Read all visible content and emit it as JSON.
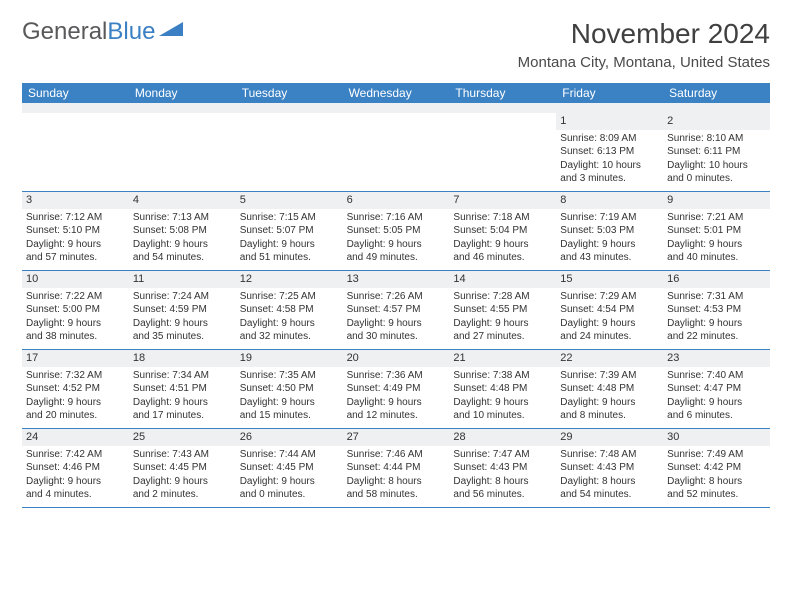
{
  "brand": {
    "part1": "General",
    "part2": "Blue"
  },
  "title": "November 2024",
  "location": "Montana City, Montana, United States",
  "colors": {
    "header_bg": "#3b82c4",
    "header_text": "#ffffff",
    "daynum_bg": "#eef0f2",
    "border": "#3b82c4",
    "text": "#333333",
    "brand_gray": "#59595b",
    "brand_blue": "#3b7fc4"
  },
  "day_names": [
    "Sunday",
    "Monday",
    "Tuesday",
    "Wednesday",
    "Thursday",
    "Friday",
    "Saturday"
  ],
  "weeks": [
    [
      null,
      null,
      null,
      null,
      null,
      {
        "n": "1",
        "sr": "Sunrise: 8:09 AM",
        "ss": "Sunset: 6:13 PM",
        "d1": "Daylight: 10 hours",
        "d2": "and 3 minutes."
      },
      {
        "n": "2",
        "sr": "Sunrise: 8:10 AM",
        "ss": "Sunset: 6:11 PM",
        "d1": "Daylight: 10 hours",
        "d2": "and 0 minutes."
      }
    ],
    [
      {
        "n": "3",
        "sr": "Sunrise: 7:12 AM",
        "ss": "Sunset: 5:10 PM",
        "d1": "Daylight: 9 hours",
        "d2": "and 57 minutes."
      },
      {
        "n": "4",
        "sr": "Sunrise: 7:13 AM",
        "ss": "Sunset: 5:08 PM",
        "d1": "Daylight: 9 hours",
        "d2": "and 54 minutes."
      },
      {
        "n": "5",
        "sr": "Sunrise: 7:15 AM",
        "ss": "Sunset: 5:07 PM",
        "d1": "Daylight: 9 hours",
        "d2": "and 51 minutes."
      },
      {
        "n": "6",
        "sr": "Sunrise: 7:16 AM",
        "ss": "Sunset: 5:05 PM",
        "d1": "Daylight: 9 hours",
        "d2": "and 49 minutes."
      },
      {
        "n": "7",
        "sr": "Sunrise: 7:18 AM",
        "ss": "Sunset: 5:04 PM",
        "d1": "Daylight: 9 hours",
        "d2": "and 46 minutes."
      },
      {
        "n": "8",
        "sr": "Sunrise: 7:19 AM",
        "ss": "Sunset: 5:03 PM",
        "d1": "Daylight: 9 hours",
        "d2": "and 43 minutes."
      },
      {
        "n": "9",
        "sr": "Sunrise: 7:21 AM",
        "ss": "Sunset: 5:01 PM",
        "d1": "Daylight: 9 hours",
        "d2": "and 40 minutes."
      }
    ],
    [
      {
        "n": "10",
        "sr": "Sunrise: 7:22 AM",
        "ss": "Sunset: 5:00 PM",
        "d1": "Daylight: 9 hours",
        "d2": "and 38 minutes."
      },
      {
        "n": "11",
        "sr": "Sunrise: 7:24 AM",
        "ss": "Sunset: 4:59 PM",
        "d1": "Daylight: 9 hours",
        "d2": "and 35 minutes."
      },
      {
        "n": "12",
        "sr": "Sunrise: 7:25 AM",
        "ss": "Sunset: 4:58 PM",
        "d1": "Daylight: 9 hours",
        "d2": "and 32 minutes."
      },
      {
        "n": "13",
        "sr": "Sunrise: 7:26 AM",
        "ss": "Sunset: 4:57 PM",
        "d1": "Daylight: 9 hours",
        "d2": "and 30 minutes."
      },
      {
        "n": "14",
        "sr": "Sunrise: 7:28 AM",
        "ss": "Sunset: 4:55 PM",
        "d1": "Daylight: 9 hours",
        "d2": "and 27 minutes."
      },
      {
        "n": "15",
        "sr": "Sunrise: 7:29 AM",
        "ss": "Sunset: 4:54 PM",
        "d1": "Daylight: 9 hours",
        "d2": "and 24 minutes."
      },
      {
        "n": "16",
        "sr": "Sunrise: 7:31 AM",
        "ss": "Sunset: 4:53 PM",
        "d1": "Daylight: 9 hours",
        "d2": "and 22 minutes."
      }
    ],
    [
      {
        "n": "17",
        "sr": "Sunrise: 7:32 AM",
        "ss": "Sunset: 4:52 PM",
        "d1": "Daylight: 9 hours",
        "d2": "and 20 minutes."
      },
      {
        "n": "18",
        "sr": "Sunrise: 7:34 AM",
        "ss": "Sunset: 4:51 PM",
        "d1": "Daylight: 9 hours",
        "d2": "and 17 minutes."
      },
      {
        "n": "19",
        "sr": "Sunrise: 7:35 AM",
        "ss": "Sunset: 4:50 PM",
        "d1": "Daylight: 9 hours",
        "d2": "and 15 minutes."
      },
      {
        "n": "20",
        "sr": "Sunrise: 7:36 AM",
        "ss": "Sunset: 4:49 PM",
        "d1": "Daylight: 9 hours",
        "d2": "and 12 minutes."
      },
      {
        "n": "21",
        "sr": "Sunrise: 7:38 AM",
        "ss": "Sunset: 4:48 PM",
        "d1": "Daylight: 9 hours",
        "d2": "and 10 minutes."
      },
      {
        "n": "22",
        "sr": "Sunrise: 7:39 AM",
        "ss": "Sunset: 4:48 PM",
        "d1": "Daylight: 9 hours",
        "d2": "and 8 minutes."
      },
      {
        "n": "23",
        "sr": "Sunrise: 7:40 AM",
        "ss": "Sunset: 4:47 PM",
        "d1": "Daylight: 9 hours",
        "d2": "and 6 minutes."
      }
    ],
    [
      {
        "n": "24",
        "sr": "Sunrise: 7:42 AM",
        "ss": "Sunset: 4:46 PM",
        "d1": "Daylight: 9 hours",
        "d2": "and 4 minutes."
      },
      {
        "n": "25",
        "sr": "Sunrise: 7:43 AM",
        "ss": "Sunset: 4:45 PM",
        "d1": "Daylight: 9 hours",
        "d2": "and 2 minutes."
      },
      {
        "n": "26",
        "sr": "Sunrise: 7:44 AM",
        "ss": "Sunset: 4:45 PM",
        "d1": "Daylight: 9 hours",
        "d2": "and 0 minutes."
      },
      {
        "n": "27",
        "sr": "Sunrise: 7:46 AM",
        "ss": "Sunset: 4:44 PM",
        "d1": "Daylight: 8 hours",
        "d2": "and 58 minutes."
      },
      {
        "n": "28",
        "sr": "Sunrise: 7:47 AM",
        "ss": "Sunset: 4:43 PM",
        "d1": "Daylight: 8 hours",
        "d2": "and 56 minutes."
      },
      {
        "n": "29",
        "sr": "Sunrise: 7:48 AM",
        "ss": "Sunset: 4:43 PM",
        "d1": "Daylight: 8 hours",
        "d2": "and 54 minutes."
      },
      {
        "n": "30",
        "sr": "Sunrise: 7:49 AM",
        "ss": "Sunset: 4:42 PM",
        "d1": "Daylight: 8 hours",
        "d2": "and 52 minutes."
      }
    ]
  ]
}
